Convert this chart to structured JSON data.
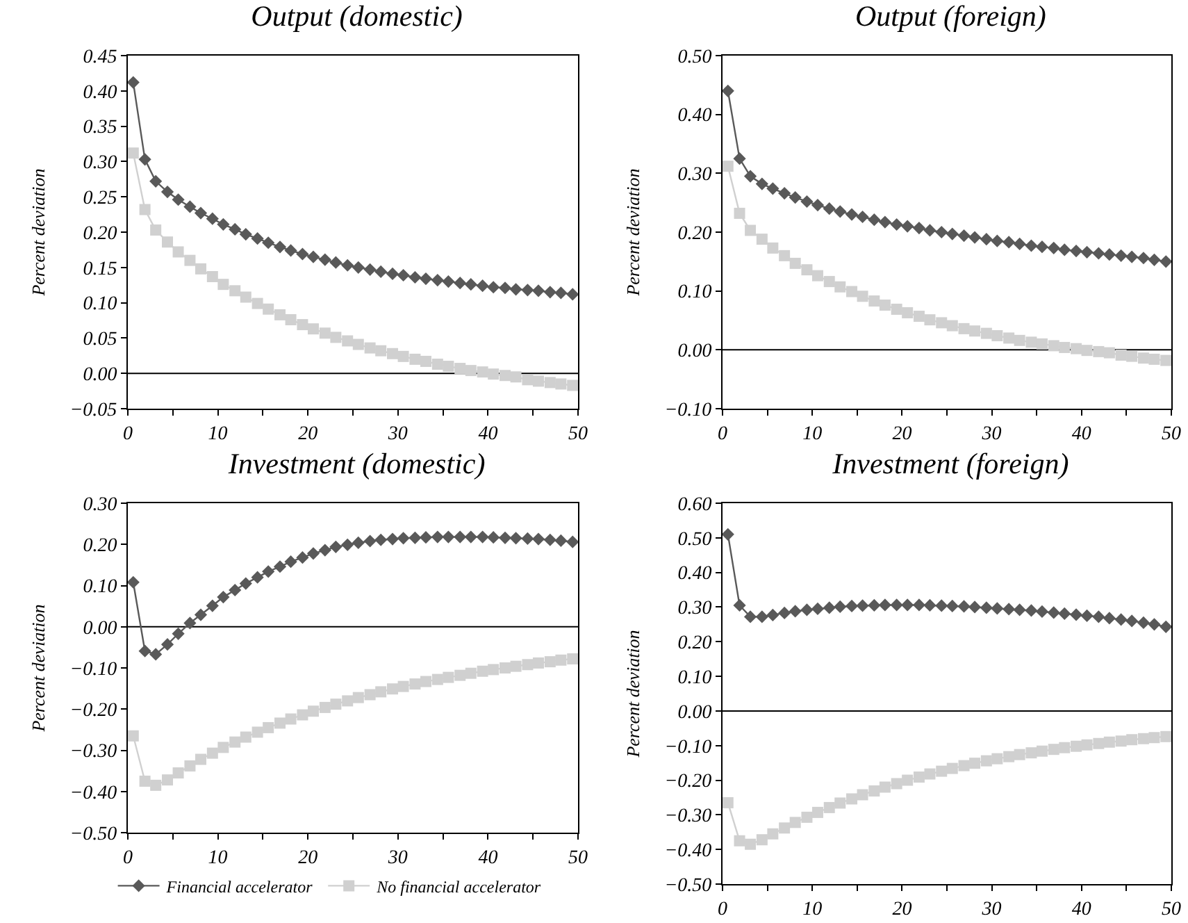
{
  "chart_data": [
    {
      "type": "line",
      "title": "Output (domestic)",
      "ylabel": "Percent deviation",
      "legend": false,
      "grid": false,
      "x": [
        0.6,
        1.9,
        3.1,
        4.4,
        5.6,
        6.9,
        8.1,
        9.4,
        10.6,
        11.9,
        13.1,
        14.4,
        15.6,
        16.9,
        18.1,
        19.4,
        20.6,
        21.9,
        23.1,
        24.4,
        25.6,
        26.9,
        28.1,
        29.4,
        30.6,
        31.9,
        33.1,
        34.4,
        35.6,
        36.9,
        38.1,
        39.4,
        40.6,
        41.9,
        43.1,
        44.4,
        45.6,
        46.9,
        48.1,
        49.4
      ],
      "xlim": [
        0,
        50
      ],
      "xticks": [
        0,
        {
          "value": 5,
          "label": null
        },
        10,
        {
          "value": 15,
          "label": null
        },
        20,
        {
          "value": 25,
          "label": null
        },
        30,
        {
          "value": 35,
          "label": null
        },
        40,
        {
          "value": 45,
          "label": null
        },
        50
      ],
      "ylim": [
        -0.05,
        0.45
      ],
      "yticks": [
        {
          "value": -0.05,
          "label": "−0.05"
        },
        {
          "value": 0,
          "label": "0.00"
        },
        {
          "value": 0.05,
          "label": "0.05"
        },
        {
          "value": 0.1,
          "label": "0.10"
        },
        {
          "value": 0.15,
          "label": "0.15"
        },
        {
          "value": 0.2,
          "label": "0.20"
        },
        {
          "value": 0.25,
          "label": "0.25"
        },
        {
          "value": 0.3,
          "label": "0.30"
        },
        {
          "value": 0.35,
          "label": "0.35"
        },
        {
          "value": 0.4,
          "label": "0.40"
        },
        {
          "value": 0.45,
          "label": "0.45"
        }
      ],
      "ref_lines": [
        {
          "axis": "y",
          "value": 0,
          "color": "#000000"
        }
      ],
      "series": [
        {
          "color": "#595959",
          "marker": "diamond",
          "values": [
            0.412,
            0.303,
            0.272,
            0.257,
            0.246,
            0.236,
            0.227,
            0.219,
            0.211,
            0.204,
            0.197,
            0.191,
            0.185,
            0.179,
            0.174,
            0.169,
            0.165,
            0.161,
            0.157,
            0.153,
            0.15,
            0.147,
            0.144,
            0.141,
            0.139,
            0.136,
            0.134,
            0.132,
            0.13,
            0.128,
            0.126,
            0.124,
            0.122,
            0.121,
            0.119,
            0.118,
            0.117,
            0.115,
            0.114,
            0.112
          ]
        },
        {
          "color": "#d0d0d0",
          "marker": "square",
          "values": [
            0.312,
            0.232,
            0.203,
            0.186,
            0.172,
            0.16,
            0.148,
            0.137,
            0.126,
            0.117,
            0.108,
            0.099,
            0.091,
            0.083,
            0.076,
            0.069,
            0.063,
            0.057,
            0.051,
            0.046,
            0.041,
            0.036,
            0.032,
            0.028,
            0.024,
            0.02,
            0.017,
            0.013,
            0.01,
            0.007,
            0.004,
            0.002,
            -0.001,
            -0.003,
            -0.005,
            -0.009,
            -0.011,
            -0.013,
            -0.015,
            -0.017
          ]
        }
      ]
    },
    {
      "type": "line",
      "title": "Output (foreign)",
      "ylabel": "Percent deviation",
      "legend": false,
      "grid": false,
      "x": [
        0.6,
        1.9,
        3.1,
        4.4,
        5.6,
        6.9,
        8.1,
        9.4,
        10.6,
        11.9,
        13.1,
        14.4,
        15.6,
        16.9,
        18.1,
        19.4,
        20.6,
        21.9,
        23.1,
        24.4,
        25.6,
        26.9,
        28.1,
        29.4,
        30.6,
        31.9,
        33.1,
        34.4,
        35.6,
        36.9,
        38.1,
        39.4,
        40.6,
        41.9,
        43.1,
        44.4,
        45.6,
        46.9,
        48.1,
        49.4
      ],
      "xlim": [
        0,
        50
      ],
      "xticks": [
        0,
        {
          "value": 5,
          "label": null
        },
        10,
        {
          "value": 15,
          "label": null
        },
        20,
        {
          "value": 25,
          "label": null
        },
        30,
        {
          "value": 35,
          "label": null
        },
        40,
        {
          "value": 45,
          "label": null
        },
        50
      ],
      "ylim": [
        -0.1,
        0.5
      ],
      "yticks": [
        {
          "value": -0.1,
          "label": "−0.10"
        },
        {
          "value": 0,
          "label": "0.00"
        },
        {
          "value": 0.1,
          "label": "0.10"
        },
        {
          "value": 0.2,
          "label": "0.20"
        },
        {
          "value": 0.3,
          "label": "0.30"
        },
        {
          "value": 0.4,
          "label": "0.40"
        },
        {
          "value": 0.5,
          "label": "0.50"
        }
      ],
      "ref_lines": [
        {
          "axis": "y",
          "value": 0,
          "color": "#000000"
        }
      ],
      "series": [
        {
          "color": "#595959",
          "marker": "diamond",
          "values": [
            0.44,
            0.325,
            0.295,
            0.282,
            0.274,
            0.266,
            0.259,
            0.252,
            0.246,
            0.24,
            0.235,
            0.23,
            0.226,
            0.221,
            0.217,
            0.213,
            0.21,
            0.207,
            0.203,
            0.2,
            0.197,
            0.194,
            0.191,
            0.188,
            0.185,
            0.183,
            0.18,
            0.177,
            0.175,
            0.173,
            0.17,
            0.168,
            0.166,
            0.164,
            0.162,
            0.16,
            0.158,
            0.156,
            0.153,
            0.15
          ]
        },
        {
          "color": "#d0d0d0",
          "marker": "square",
          "values": [
            0.312,
            0.232,
            0.203,
            0.188,
            0.173,
            0.16,
            0.147,
            0.136,
            0.126,
            0.116,
            0.107,
            0.099,
            0.091,
            0.083,
            0.076,
            0.069,
            0.063,
            0.057,
            0.051,
            0.046,
            0.041,
            0.036,
            0.032,
            0.028,
            0.024,
            0.02,
            0.016,
            0.013,
            0.01,
            0.007,
            0.004,
            0.002,
            -0.001,
            -0.003,
            -0.005,
            -0.009,
            -0.011,
            -0.014,
            -0.016,
            -0.018
          ]
        }
      ]
    },
    {
      "type": "line",
      "title": "Investment (domestic)",
      "ylabel": "Percent deviation",
      "legend": "bottom",
      "grid": false,
      "x": [
        0.6,
        1.9,
        3.1,
        4.4,
        5.6,
        6.9,
        8.1,
        9.4,
        10.6,
        11.9,
        13.1,
        14.4,
        15.6,
        16.9,
        18.1,
        19.4,
        20.6,
        21.9,
        23.1,
        24.4,
        25.6,
        26.9,
        28.1,
        29.4,
        30.6,
        31.9,
        33.1,
        34.4,
        35.6,
        36.9,
        38.1,
        39.4,
        40.6,
        41.9,
        43.1,
        44.4,
        45.6,
        46.9,
        48.1,
        49.4
      ],
      "xlim": [
        0,
        50
      ],
      "xticks": [
        0,
        {
          "value": 5,
          "label": null
        },
        10,
        {
          "value": 15,
          "label": null
        },
        20,
        {
          "value": 25,
          "label": null
        },
        30,
        {
          "value": 35,
          "label": null
        },
        40,
        {
          "value": 45,
          "label": null
        },
        50
      ],
      "ylim": [
        -0.5,
        0.3
      ],
      "yticks": [
        {
          "value": -0.5,
          "label": "−0.50"
        },
        {
          "value": -0.4,
          "label": "−0.40"
        },
        {
          "value": -0.3,
          "label": "−0.30"
        },
        {
          "value": -0.2,
          "label": "−0.20"
        },
        {
          "value": -0.1,
          "label": "−0.10"
        },
        {
          "value": 0,
          "label": "0.00"
        },
        {
          "value": 0.1,
          "label": "0.10"
        },
        {
          "value": 0.2,
          "label": "0.20"
        },
        {
          "value": 0.3,
          "label": "0.30"
        }
      ],
      "ref_lines": [
        {
          "axis": "y",
          "value": 0,
          "color": "#000000"
        }
      ],
      "series": [
        {
          "name": "Financial accelerator",
          "color": "#595959",
          "marker": "diamond",
          "values": [
            0.108,
            -0.059,
            -0.067,
            -0.043,
            -0.017,
            0.009,
            0.029,
            0.051,
            0.072,
            0.089,
            0.105,
            0.12,
            0.134,
            0.146,
            0.158,
            0.168,
            0.178,
            0.186,
            0.194,
            0.199,
            0.204,
            0.208,
            0.211,
            0.213,
            0.215,
            0.216,
            0.217,
            0.218,
            0.218,
            0.218,
            0.218,
            0.218,
            0.217,
            0.216,
            0.215,
            0.214,
            0.213,
            0.211,
            0.209,
            0.206
          ]
        },
        {
          "name": "No financial accelerator",
          "color": "#d0d0d0",
          "marker": "square",
          "values": [
            -0.265,
            -0.375,
            -0.385,
            -0.372,
            -0.355,
            -0.338,
            -0.322,
            -0.307,
            -0.293,
            -0.28,
            -0.268,
            -0.256,
            -0.245,
            -0.234,
            -0.224,
            -0.214,
            -0.205,
            -0.196,
            -0.188,
            -0.18,
            -0.172,
            -0.165,
            -0.158,
            -0.151,
            -0.145,
            -0.139,
            -0.133,
            -0.128,
            -0.123,
            -0.118,
            -0.113,
            -0.108,
            -0.104,
            -0.1,
            -0.096,
            -0.092,
            -0.088,
            -0.085,
            -0.081,
            -0.078
          ]
        }
      ]
    },
    {
      "type": "line",
      "title": "Investment (foreign)",
      "ylabel": "Percent deviation",
      "legend": false,
      "grid": false,
      "x": [
        0.6,
        1.9,
        3.1,
        4.4,
        5.6,
        6.9,
        8.1,
        9.4,
        10.6,
        11.9,
        13.1,
        14.4,
        15.6,
        16.9,
        18.1,
        19.4,
        20.6,
        21.9,
        23.1,
        24.4,
        25.6,
        26.9,
        28.1,
        29.4,
        30.6,
        31.9,
        33.1,
        34.4,
        35.6,
        36.9,
        38.1,
        39.4,
        40.6,
        41.9,
        43.1,
        44.4,
        45.6,
        46.9,
        48.1,
        49.4
      ],
      "xlim": [
        0,
        50
      ],
      "xticks": [
        0,
        {
          "value": 5,
          "label": null
        },
        10,
        {
          "value": 15,
          "label": null
        },
        20,
        {
          "value": 25,
          "label": null
        },
        30,
        {
          "value": 35,
          "label": null
        },
        40,
        {
          "value": 45,
          "label": null
        },
        50
      ],
      "ylim": [
        -0.5,
        0.6
      ],
      "yticks": [
        {
          "value": -0.5,
          "label": "−0.50"
        },
        {
          "value": -0.4,
          "label": "−0.40"
        },
        {
          "value": -0.3,
          "label": "−0.30"
        },
        {
          "value": -0.2,
          "label": "−0.20"
        },
        {
          "value": -0.1,
          "label": "−0.10"
        },
        {
          "value": 0,
          "label": "0.00"
        },
        {
          "value": 0.1,
          "label": "0.10"
        },
        {
          "value": 0.2,
          "label": "0.20"
        },
        {
          "value": 0.3,
          "label": "0.30"
        },
        {
          "value": 0.4,
          "label": "0.40"
        },
        {
          "value": 0.5,
          "label": "0.50"
        },
        {
          "value": 0.6,
          "label": "0.60"
        }
      ],
      "ref_lines": [
        {
          "axis": "y",
          "value": 0,
          "color": "#000000"
        }
      ],
      "series": [
        {
          "color": "#595959",
          "marker": "diamond",
          "values": [
            0.51,
            0.305,
            0.272,
            0.272,
            0.277,
            0.283,
            0.288,
            0.292,
            0.295,
            0.298,
            0.301,
            0.303,
            0.304,
            0.305,
            0.306,
            0.306,
            0.306,
            0.306,
            0.305,
            0.304,
            0.303,
            0.302,
            0.3,
            0.298,
            0.296,
            0.294,
            0.292,
            0.29,
            0.287,
            0.284,
            0.281,
            0.278,
            0.275,
            0.272,
            0.268,
            0.264,
            0.26,
            0.255,
            0.25,
            0.243
          ]
        },
        {
          "color": "#d0d0d0",
          "marker": "square",
          "values": [
            -0.265,
            -0.375,
            -0.385,
            -0.372,
            -0.355,
            -0.338,
            -0.322,
            -0.307,
            -0.293,
            -0.279,
            -0.266,
            -0.254,
            -0.242,
            -0.231,
            -0.22,
            -0.21,
            -0.2,
            -0.191,
            -0.182,
            -0.174,
            -0.166,
            -0.158,
            -0.151,
            -0.144,
            -0.138,
            -0.132,
            -0.126,
            -0.121,
            -0.116,
            -0.111,
            -0.106,
            -0.102,
            -0.098,
            -0.094,
            -0.09,
            -0.087,
            -0.083,
            -0.08,
            -0.077,
            -0.074
          ]
        }
      ]
    }
  ]
}
